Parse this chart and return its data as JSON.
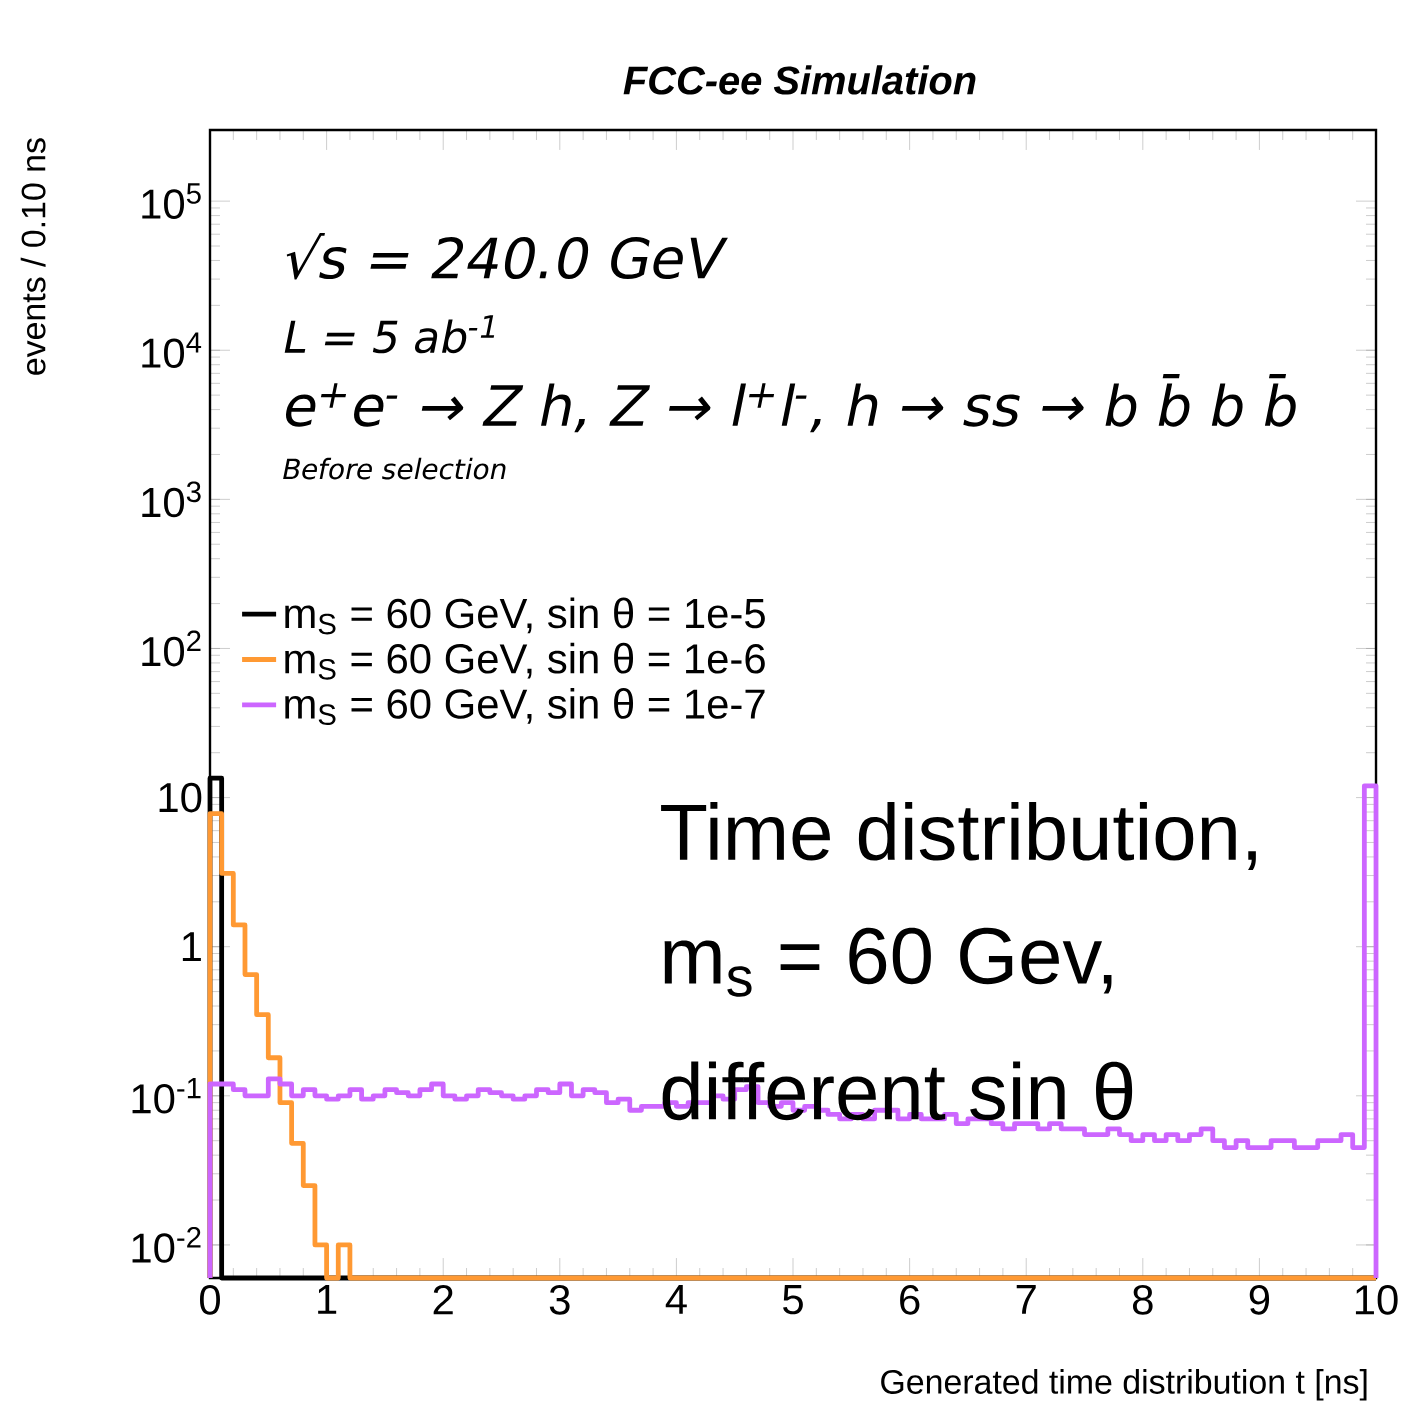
{
  "chart_data": {
    "type": "histogram",
    "title": "FCC-ee Simulation",
    "xlabel": "Generated time distribution t [ns]",
    "ylabel": "events / 0.10 ns",
    "annotations": [
      "√s = 240.0 GeV",
      "L = 5 ab$^{-1}$",
      "e$^{+}$e$^{-}$ → Z h, Z → l$^{+}$l$^{-}$, h → ss → b b̄ b b̄",
      "Before selection",
      "Time distribution,",
      "m$_{s}$ = 60 Gev,",
      "different sin θ"
    ],
    "bins": [
      0,
      0.1,
      0.2,
      0.3,
      0.4,
      0.5,
      0.6,
      0.7,
      0.8,
      0.9,
      1.0,
      1.1,
      1.2,
      1.3,
      1.4,
      1.5,
      1.6,
      1.7,
      1.8,
      1.9,
      2.0,
      2.1,
      2.2,
      2.3,
      2.4,
      2.5,
      2.6,
      2.7,
      2.8,
      2.9,
      3.0,
      3.1,
      3.2,
      3.3,
      3.4,
      3.5,
      3.6,
      3.7,
      3.8,
      3.9,
      4.0,
      4.1,
      4.2,
      4.3,
      4.4,
      4.5,
      4.6,
      4.7,
      4.8,
      4.9,
      5.0,
      5.1,
      5.2,
      5.3,
      5.4,
      5.5,
      5.6,
      5.7,
      5.8,
      5.9,
      6.0,
      6.1,
      6.2,
      6.3,
      6.4,
      6.5,
      6.6,
      6.7,
      6.8,
      6.9,
      7.0,
      7.1,
      7.2,
      7.3,
      7.4,
      7.5,
      7.6,
      7.7,
      7.8,
      7.9,
      8.0,
      8.1,
      8.2,
      8.3,
      8.4,
      8.5,
      8.6,
      8.7,
      8.8,
      8.9,
      9.0,
      9.1,
      9.2,
      9.3,
      9.4,
      9.5,
      9.6,
      9.7,
      9.8,
      9.9,
      10.0
    ],
    "series": [
      {
        "name": "m$_{S}$ = 60 GeV, sin θ = 1e-5",
        "color": "#000000",
        "values": [
          13.5,
          null,
          null,
          null,
          null,
          null,
          null,
          null,
          null,
          null,
          null,
          null,
          null,
          null,
          null,
          null,
          null,
          null,
          null,
          null,
          null,
          null,
          null,
          null,
          null,
          null,
          null,
          null,
          null,
          null,
          null,
          null,
          null,
          null,
          null,
          null,
          null,
          null,
          null,
          null,
          null,
          null,
          null,
          null,
          null,
          null,
          null,
          null,
          null,
          null,
          null,
          null,
          null,
          null,
          null,
          null,
          null,
          null,
          null,
          null,
          null,
          null,
          null,
          null,
          null,
          null,
          null,
          null,
          null,
          null,
          null,
          null,
          null,
          null,
          null,
          null,
          null,
          null,
          null,
          null,
          null,
          null,
          null,
          null,
          null,
          null,
          null,
          null,
          null,
          null,
          null,
          null,
          null,
          null,
          null,
          null,
          null,
          null,
          null,
          null
        ]
      },
      {
        "name": "m$_{S}$ = 60 GeV, sin θ = 1e-6",
        "color": "#ff9933",
        "values": [
          7.8,
          3.1,
          1.4,
          0.65,
          0.35,
          0.18,
          0.09,
          0.048,
          0.025,
          0.01,
          null,
          0.01,
          null,
          null,
          null,
          null,
          null,
          null,
          null,
          null,
          null,
          null,
          null,
          null,
          null,
          null,
          null,
          null,
          null,
          null,
          null,
          null,
          null,
          null,
          null,
          null,
          null,
          null,
          null,
          null,
          null,
          null,
          null,
          null,
          null,
          null,
          null,
          null,
          null,
          null,
          null,
          null,
          null,
          null,
          null,
          null,
          null,
          null,
          null,
          null,
          null,
          null,
          null,
          null,
          null,
          null,
          null,
          null,
          null,
          null,
          null,
          null,
          null,
          null,
          null,
          null,
          null,
          null,
          null,
          null,
          null,
          null,
          null,
          null,
          null,
          null,
          null,
          null,
          null,
          null,
          null,
          null,
          null,
          null,
          null,
          null,
          null,
          null,
          null,
          null
        ]
      },
      {
        "name": "m$_{S}$ = 60 GeV, sin θ = 1e-7",
        "color": "#cc66ff",
        "values": [
          0.12,
          0.12,
          0.11,
          0.1,
          0.1,
          0.13,
          0.12,
          0.1,
          0.11,
          0.1,
          0.095,
          0.1,
          0.11,
          0.095,
          0.1,
          0.11,
          0.105,
          0.1,
          0.11,
          0.12,
          0.1,
          0.095,
          0.1,
          0.11,
          0.105,
          0.1,
          0.095,
          0.1,
          0.11,
          0.105,
          0.12,
          0.1,
          0.11,
          0.105,
          0.09,
          0.095,
          0.08,
          0.085,
          0.085,
          0.09,
          0.085,
          0.09,
          0.09,
          0.1,
          0.095,
          0.11,
          0.115,
          0.09,
          0.085,
          0.09,
          0.08,
          0.085,
          0.08,
          0.075,
          0.07,
          0.075,
          0.07,
          0.08,
          0.08,
          0.07,
          0.075,
          0.07,
          0.07,
          0.075,
          0.065,
          0.07,
          0.07,
          0.065,
          0.06,
          0.065,
          0.065,
          0.06,
          0.065,
          0.06,
          0.06,
          0.055,
          0.055,
          0.06,
          0.055,
          0.05,
          0.055,
          0.05,
          0.055,
          0.05,
          0.055,
          0.06,
          0.05,
          0.045,
          0.05,
          0.045,
          0.045,
          0.05,
          0.05,
          0.045,
          0.045,
          0.05,
          0.05,
          0.055,
          0.045,
          12
        ]
      }
    ],
    "xlim": [
      0,
      10
    ],
    "ylim": [
      0.006,
      300000
    ],
    "log": true,
    "legend": "left",
    "xticks": [
      0,
      1,
      2,
      3,
      4,
      5,
      6,
      7,
      8,
      9,
      10
    ],
    "yticks": [
      {
        "value": 0.01,
        "label": "10$^{-2}$"
      },
      {
        "value": 0.1,
        "label": "10$^{-1}$"
      },
      1,
      10,
      {
        "value": 100,
        "label": "10$^{2}$"
      },
      {
        "value": 1000,
        "label": "10$^{3}$"
      },
      {
        "value": 10000,
        "label": "10$^{4}$"
      },
      {
        "value": 100000,
        "label": "10$^{5}$"
      }
    ]
  }
}
